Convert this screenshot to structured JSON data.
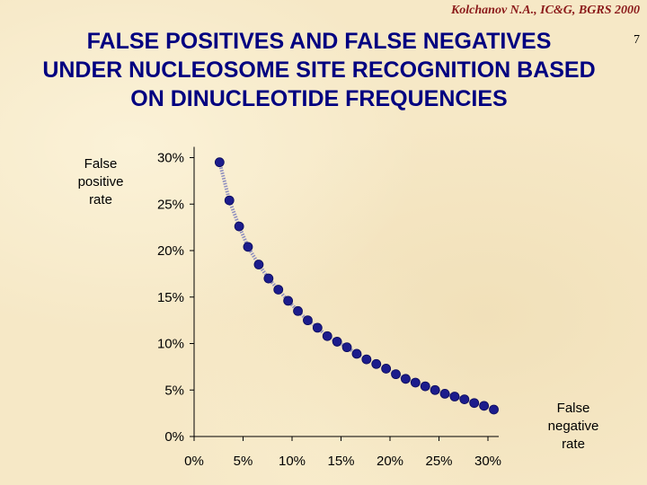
{
  "header": {
    "credit": "Kolchanov N.A., IC&G, BGRS 2000",
    "slide_number": "7"
  },
  "title": {
    "line1": "FALSE POSITIVES AND FALSE NEGATIVES",
    "line2": "UNDER NUCLEOSOME SITE RECOGNITION BASED",
    "line3": "ON DINUCLEOTIDE FREQUENCIES"
  },
  "axis_captions": {
    "y_lines": [
      "False",
      "positive",
      "rate"
    ],
    "x_lines": [
      "False",
      "negative",
      "rate"
    ]
  },
  "colors": {
    "title": "#000080",
    "credit": "#8b1a1a",
    "marker": "#1c1c8c",
    "line": "#8c8cbe"
  },
  "chart_data": {
    "type": "scatter",
    "xlabel": "False negative rate",
    "ylabel": "False positive rate",
    "xlim": [
      0,
      30
    ],
    "ylim": [
      0,
      30
    ],
    "x_ticks": [
      "0%",
      "5%",
      "10%",
      "15%",
      "20%",
      "25%",
      "30%"
    ],
    "y_ticks": [
      "0%",
      "5%",
      "10%",
      "15%",
      "20%",
      "25%",
      "30%"
    ],
    "grid": false,
    "series": [
      {
        "x": [
          2.6,
          3.6,
          4.6,
          5.5,
          6.6,
          7.6,
          8.6,
          9.6,
          10.6,
          11.6,
          12.6,
          13.6,
          14.6,
          15.6,
          16.6,
          17.6,
          18.6,
          19.6,
          20.6,
          21.6,
          22.6,
          23.6,
          24.6,
          25.6,
          26.6,
          27.6,
          28.6,
          29.6,
          30.6
        ],
        "y": [
          29.5,
          25.4,
          22.6,
          20.4,
          18.5,
          17.0,
          15.8,
          14.6,
          13.5,
          12.5,
          11.7,
          10.8,
          10.2,
          9.6,
          8.9,
          8.3,
          7.8,
          7.3,
          6.7,
          6.2,
          5.8,
          5.4,
          5.0,
          4.6,
          4.3,
          4.0,
          3.6,
          3.3,
          2.9
        ]
      }
    ]
  }
}
